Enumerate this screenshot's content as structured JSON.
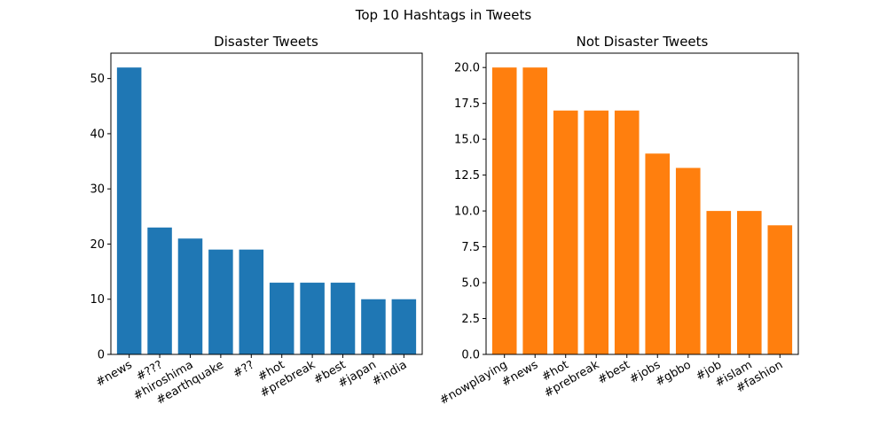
{
  "figure": {
    "suptitle": "Top 10 Hashtags in Tweets"
  },
  "chart_data": [
    {
      "type": "bar",
      "title": "Disaster Tweets",
      "xlabel": "",
      "ylabel": "",
      "color": "#1f77b4",
      "categories": [
        "#news",
        "#???",
        "#hiroshima",
        "#earthquake",
        "#??",
        "#hot",
        "#prebreak",
        "#best",
        "#japan",
        "#india"
      ],
      "values": [
        52,
        23,
        21,
        19,
        19,
        13,
        13,
        13,
        10,
        10
      ],
      "ylim": [
        0,
        54.6
      ],
      "yticks": [
        0,
        10,
        20,
        30,
        40,
        50
      ],
      "ytick_labels": [
        "0",
        "10",
        "20",
        "30",
        "40",
        "50"
      ],
      "grid": false
    },
    {
      "type": "bar",
      "title": "Not Disaster Tweets",
      "xlabel": "",
      "ylabel": "",
      "color": "#ff7f0e",
      "categories": [
        "#nowplaying",
        "#news",
        "#hot",
        "#prebreak",
        "#best",
        "#jobs",
        "#gbbo",
        "#job",
        "#islam",
        "#fashion"
      ],
      "values": [
        20,
        20,
        17,
        17,
        17,
        14,
        13,
        10,
        10,
        9
      ],
      "ylim": [
        0,
        21
      ],
      "yticks": [
        0,
        2.5,
        5,
        7.5,
        10,
        12.5,
        15,
        17.5,
        20
      ],
      "ytick_labels": [
        "0.0",
        "2.5",
        "5.0",
        "7.5",
        "10.0",
        "12.5",
        "15.0",
        "17.5",
        "20.0"
      ],
      "grid": false
    }
  ]
}
